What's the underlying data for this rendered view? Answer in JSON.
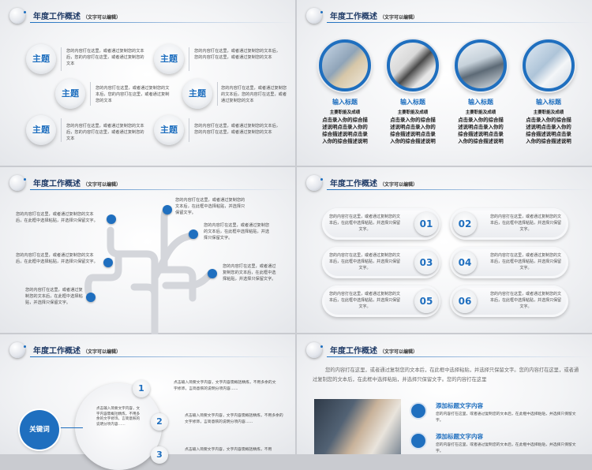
{
  "header": {
    "title": "年度工作概述",
    "subtitle": "（文字可以编辑）"
  },
  "slide1": {
    "topics": [
      "主题",
      "主题",
      "主题",
      "主题",
      "主题",
      "主题"
    ],
    "texts": [
      "您的内容打在这里，或者通过复制您的文本后，您的内容打在这里，或者通过复制您的文本",
      "您的内容打在这里，或者通过复制您的文本后，您的内容打在这里，或者通过复制您的文本",
      "您的内容打在这里，或者通过复制您的文本后，您的内容打在这里，或者通过复制您的文本",
      "您的内容打在这里，或者通过复制您的文本后，您的内容打在这里，或者通过复制您的文本",
      "您的内容打在这里，或者通过复制您的文本后，您的内容打在这里，或者通过复制您的文本",
      "您的内容打在这里，或者通过复制您的文本后，您的内容打在这里，或者通过复制您的文本"
    ]
  },
  "slide2": {
    "items": [
      {
        "title": "输入标题",
        "group": "主要职能及成绩",
        "desc": "点击录入你的综合描述说明点击录入你的综合描述说明点击录入你的综合描述说明"
      },
      {
        "title": "输入标题",
        "group": "主要职能及成绩",
        "desc": "点击录入你的综合描述说明点击录入你的综合描述说明点击录入你的综合描述说明"
      },
      {
        "title": "输入标题",
        "group": "主要职能及成绩",
        "desc": "点击录入你的综合描述说明点击录入你的综合描述说明点击录入你的综合描述说明"
      },
      {
        "title": "输入标题",
        "group": "主要职能及成绩",
        "desc": "点击录入你的综合描述说明点击录入你的综合描述说明点击录入你的综合描述说明"
      }
    ]
  },
  "slide3": {
    "texts": [
      "您的内容打在这里，或者通过复制您的文本后，在此框中选择粘贴，并选择只保留文字。",
      "您的内容打在这里，或者通过复制您的文本后，在此框中选择粘贴，并选择只保留文字。",
      "您的内容打在这里，或者通过复制您的文本后，在此框中选择粘贴，并选择只保留文字。",
      "您的内容打在这里，或者通过复制您的文本后，在此框中选择粘贴，并选择只保留文字。",
      "您的内容打在这里，或者通过复制您的文本后，在此框中选择粘贴，并选择只保留文字。",
      "您的内容打在这里，或者通过复制您的文本后，在此框中选择粘贴，并选择只保留文字。"
    ]
  },
  "slide4": {
    "items": [
      {
        "num": "01",
        "text": "您的内容打在这里，或者通过复制您的文本后，在此框中选择粘贴，并选择只保留文字。"
      },
      {
        "num": "02",
        "text": "您的内容打在这里，或者通过复制您的文本后，在此框中选择粘贴，并选择只保留文字。"
      },
      {
        "num": "03",
        "text": "您的内容打在这里，或者通过复制您的文本后，在此框中选择粘贴，并选择只保留文字。"
      },
      {
        "num": "04",
        "text": "您的内容打在这里，或者通过复制您的文本后，在此框中选择粘贴，并选择只保留文字。"
      },
      {
        "num": "05",
        "text": "您的内容打在这里，或者通过复制您的文本后，在此框中选择粘贴，并选择只保留文字。"
      },
      {
        "num": "06",
        "text": "您的内容打在这里，或者通过复制您的文本后，在此框中选择粘贴，并选择只保留文字。"
      }
    ]
  },
  "slide5": {
    "keyword": "关键词",
    "center_text": "点击输入简要文字内容，文字内容需概括精炼，不用多余的文字修饰，言简意赅的说明分项内容……",
    "items": [
      {
        "num": "1",
        "text": "点击输入简要文字内容，文字内容需概括精炼，不用多余的文字修饰，言简意赅的说明分项内容……"
      },
      {
        "num": "2",
        "text": "点击输入简要文字内容，文字内容需概括精炼，不用多余的文字修饰，言简意赅的说明分项内容……"
      },
      {
        "num": "3",
        "text": "点击输入简要文字内容，文字内容需概括精炼，不用"
      }
    ]
  },
  "slide6": {
    "intro": "您的内容打在这里，或者通过复制您的文本后，在此框中选择粘贴，并选择只保留文字。您的内容打在这里，或者通过复制您的文本后，在此框中选择粘贴，并选择只保留文字。您的内容打在这里",
    "items": [
      {
        "title": "添加标题文字内容",
        "text": "您的内容打在这里，或者通过复制您的文本后，在此框中选择粘贴，并选择只保留文字。"
      },
      {
        "title": "添加标题文字内容",
        "text": "您的内容打在这里，或者通过复制您的文本后，在此框中选择粘贴，并选择只保留文字。"
      }
    ]
  },
  "colors": {
    "accent": "#1f6fbf",
    "title": "#1f3a66"
  }
}
